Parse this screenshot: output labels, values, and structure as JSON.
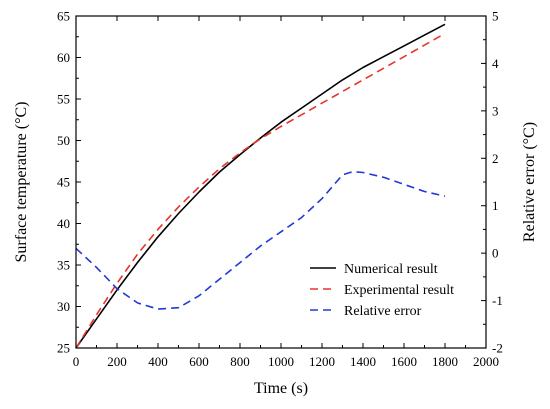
{
  "chart_data": {
    "type": "line",
    "title": "",
    "xlabel": "Time (s)",
    "ylabel": "Surface temperature (°C)",
    "y2label": "Relative error (°C)",
    "xlim": [
      0,
      2000
    ],
    "ylim": [
      25,
      65
    ],
    "y2lim": [
      -2,
      5
    ],
    "xticks": [
      "0",
      "200",
      "400",
      "600",
      "800",
      "1000",
      "1200",
      "1400",
      "1600",
      "1800",
      "2000"
    ],
    "yticks": [
      "25",
      "30",
      "35",
      "40",
      "45",
      "50",
      "55",
      "60",
      "65"
    ],
    "y2ticks": [
      "-2",
      "-1",
      "0",
      "1",
      "2",
      "3",
      "4",
      "5"
    ],
    "grid": false,
    "legend_position": "bottom-right",
    "series": [
      {
        "name": "Numerical result",
        "axis": "left",
        "style": "solid",
        "color": "#000000",
        "x": [
          0,
          100,
          200,
          300,
          400,
          500,
          600,
          700,
          800,
          900,
          1000,
          1100,
          1200,
          1300,
          1400,
          1500,
          1600,
          1700,
          1800
        ],
        "y": [
          25,
          28.5,
          32,
          35.3,
          38.4,
          41.2,
          43.8,
          46.2,
          48.3,
          50.3,
          52.2,
          53.9,
          55.6,
          57.3,
          58.8,
          60.1,
          61.4,
          62.7,
          64
        ]
      },
      {
        "name": "Experimental result",
        "axis": "left",
        "style": "dashed",
        "color": "#e8342c",
        "x": [
          0,
          100,
          200,
          300,
          400,
          500,
          600,
          700,
          800,
          900,
          1000,
          1100,
          1200,
          1300,
          1400,
          1500,
          1600,
          1700,
          1800
        ],
        "y": [
          25,
          29,
          32.8,
          36.3,
          39.3,
          42,
          44.4,
          46.6,
          48.5,
          50.2,
          51.7,
          53.1,
          54.5,
          55.9,
          57.3,
          58.7,
          60.1,
          61.5,
          62.9
        ]
      },
      {
        "name": "Relative error",
        "axis": "right",
        "style": "dashed",
        "color": "#2238d8",
        "x": [
          0,
          100,
          200,
          300,
          400,
          500,
          600,
          700,
          800,
          900,
          1000,
          1100,
          1200,
          1300,
          1350,
          1400,
          1500,
          1600,
          1700,
          1800
        ],
        "y": [
          0.1,
          -0.3,
          -0.75,
          -1.05,
          -1.18,
          -1.15,
          -0.9,
          -0.55,
          -0.2,
          0.15,
          0.45,
          0.75,
          1.15,
          1.65,
          1.72,
          1.7,
          1.6,
          1.45,
          1.3,
          1.2
        ]
      }
    ]
  }
}
